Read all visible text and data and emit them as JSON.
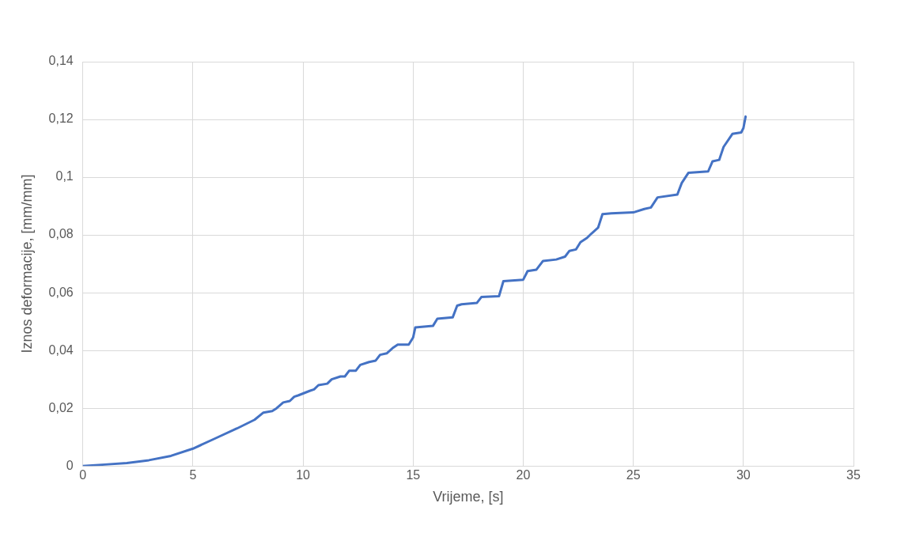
{
  "chart_data": {
    "type": "line",
    "xlabel": "Vrijeme, [s]",
    "ylabel": "Iznos deformacije, [mm/mm]",
    "x": [
      0,
      1,
      2,
      3,
      4,
      5,
      6,
      7,
      7.8,
      8.2,
      8.6,
      8.8,
      9.1,
      9.4,
      9.6,
      9.8,
      10.3,
      10.5,
      10.7,
      11.1,
      11.3,
      11.7,
      11.9,
      12.1,
      12.4,
      12.6,
      13,
      13.3,
      13.5,
      13.8,
      14.1,
      14.3,
      14.8,
      15,
      15.1,
      15.9,
      16.1,
      16.8,
      17,
      17.2,
      17.9,
      18.1,
      18.9,
      19.1,
      20,
      20.2,
      20.6,
      20.9,
      21.5,
      21.9,
      22.1,
      22.4,
      22.6,
      22.9,
      23.1,
      23.4,
      23.6,
      24,
      25,
      25.5,
      25.8,
      26.1,
      27,
      27.2,
      27.5,
      28.4,
      28.6,
      28.9,
      29.1,
      29.5,
      29.9,
      30,
      30.1
    ],
    "series": [
      {
        "color": "#4472c4",
        "values": [
          0,
          0.0005,
          0.001,
          0.002,
          0.0035,
          0.006,
          0.0095,
          0.013,
          0.016,
          0.0185,
          0.019,
          0.02,
          0.022,
          0.0225,
          0.024,
          0.0245,
          0.026,
          0.0265,
          0.028,
          0.0285,
          0.03,
          0.031,
          0.031,
          0.033,
          0.033,
          0.035,
          0.036,
          0.0365,
          0.0385,
          0.039,
          0.041,
          0.042,
          0.042,
          0.0445,
          0.048,
          0.0485,
          0.051,
          0.0515,
          0.0555,
          0.056,
          0.0565,
          0.0585,
          0.0588,
          0.064,
          0.0645,
          0.0675,
          0.068,
          0.071,
          0.0715,
          0.0725,
          0.0745,
          0.075,
          0.0775,
          0.079,
          0.0805,
          0.0825,
          0.0872,
          0.0875,
          0.0878,
          0.089,
          0.0895,
          0.093,
          0.094,
          0.098,
          0.1015,
          0.102,
          0.1055,
          0.106,
          0.1105,
          0.115,
          0.1155,
          0.117,
          0.121
        ]
      }
    ],
    "xlim": [
      0,
      35
    ],
    "xticks": [
      0,
      5,
      10,
      15,
      20,
      25,
      30,
      35
    ],
    "ylim": [
      0,
      0.14
    ],
    "yticks": [
      {
        "value": 0,
        "label": "0"
      },
      {
        "value": 0.02,
        "label": "0,02"
      },
      {
        "value": 0.04,
        "label": "0,04"
      },
      {
        "value": 0.06,
        "label": "0,06"
      },
      {
        "value": 0.08,
        "label": "0,08"
      },
      {
        "value": 0.1,
        "label": "0,1"
      },
      {
        "value": 0.12,
        "label": "0,12"
      },
      {
        "value": 0.14,
        "label": "0,14"
      }
    ],
    "grid": true,
    "legend": false,
    "marker": "none",
    "line_style": "solid"
  }
}
